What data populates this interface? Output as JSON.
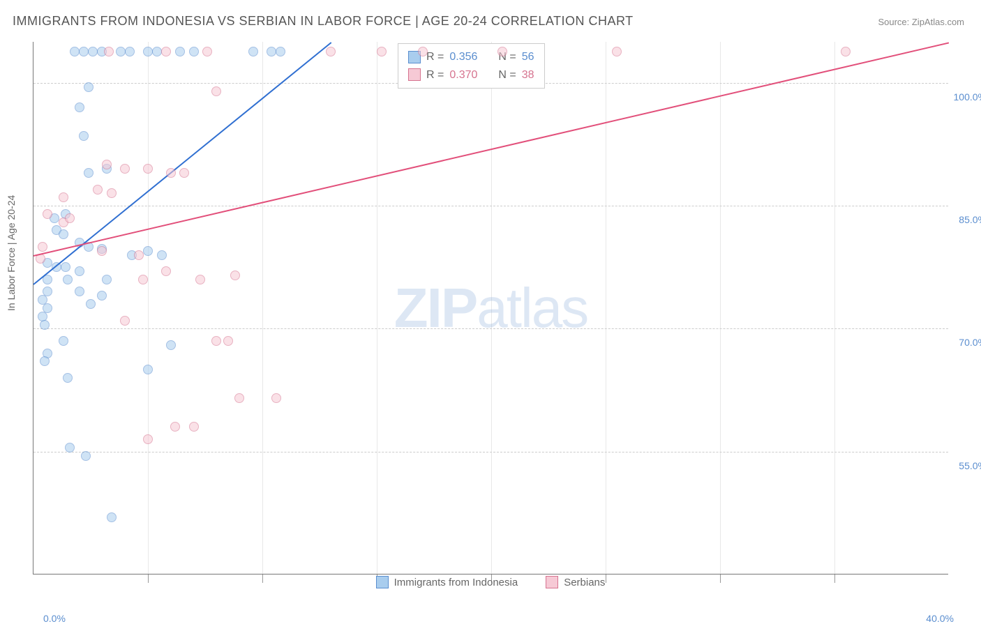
{
  "title": "IMMIGRANTS FROM INDONESIA VS SERBIAN IN LABOR FORCE | AGE 20-24 CORRELATION CHART",
  "source": "Source: ZipAtlas.com",
  "ylabel": "In Labor Force | Age 20-24",
  "watermark_a": "ZIP",
  "watermark_b": "atlas",
  "chart": {
    "type": "scatter",
    "xlim": [
      0,
      40
    ],
    "ylim": [
      40,
      105
    ],
    "grid_color": "#cccccc",
    "background_color": "#ffffff",
    "yticks": [
      {
        "value": 55,
        "label": "55.0%"
      },
      {
        "value": 70,
        "label": "70.0%"
      },
      {
        "value": 85,
        "label": "85.0%"
      },
      {
        "value": 100,
        "label": "100.0%"
      }
    ],
    "xgrid_values": [
      5,
      10,
      15,
      20,
      25,
      30,
      35
    ],
    "xtick_left_label": "0.0%",
    "xtick_right_label": "40.0%",
    "marker_radius": 7,
    "marker_opacity": 0.55,
    "series": [
      {
        "name": "Immigrants from Indonesia",
        "fill_color": "#a9cdee",
        "border_color": "#5b8ecf",
        "stroke_color": "#2f6fd1",
        "R": "0.356",
        "N": "56",
        "trend": {
          "x1": 0,
          "y1": 75.5,
          "x2": 13.0,
          "y2": 105.0
        },
        "points": [
          [
            1.8,
            103.8
          ],
          [
            2.2,
            103.8
          ],
          [
            2.6,
            103.8
          ],
          [
            3.0,
            103.8
          ],
          [
            3.8,
            103.8
          ],
          [
            4.2,
            103.8
          ],
          [
            5.0,
            103.8
          ],
          [
            5.4,
            103.8
          ],
          [
            6.4,
            103.8
          ],
          [
            7.0,
            103.8
          ],
          [
            9.6,
            103.8
          ],
          [
            10.4,
            103.8
          ],
          [
            10.8,
            103.8
          ],
          [
            2.4,
            99.5
          ],
          [
            2.0,
            97.0
          ],
          [
            2.2,
            93.5
          ],
          [
            3.2,
            89.5
          ],
          [
            2.4,
            89.0
          ],
          [
            0.9,
            83.5
          ],
          [
            1.4,
            84.0
          ],
          [
            1.0,
            82.0
          ],
          [
            1.3,
            81.5
          ],
          [
            2.0,
            80.5
          ],
          [
            2.4,
            80.0
          ],
          [
            3.0,
            79.7
          ],
          [
            4.3,
            79.0
          ],
          [
            5.0,
            79.5
          ],
          [
            5.6,
            79.0
          ],
          [
            0.6,
            78.0
          ],
          [
            1.0,
            77.5
          ],
          [
            1.4,
            77.5
          ],
          [
            2.0,
            77.0
          ],
          [
            0.6,
            76.0
          ],
          [
            1.5,
            76.0
          ],
          [
            3.2,
            76.0
          ],
          [
            0.6,
            74.5
          ],
          [
            0.4,
            73.5
          ],
          [
            0.6,
            72.5
          ],
          [
            0.4,
            71.5
          ],
          [
            0.5,
            70.5
          ],
          [
            2.0,
            74.5
          ],
          [
            2.5,
            73.0
          ],
          [
            3.0,
            74.0
          ],
          [
            1.3,
            68.5
          ],
          [
            6.0,
            68.0
          ],
          [
            0.6,
            67.0
          ],
          [
            0.5,
            66.0
          ],
          [
            1.5,
            64.0
          ],
          [
            5.0,
            65.0
          ],
          [
            1.6,
            55.5
          ],
          [
            2.3,
            54.5
          ],
          [
            3.4,
            47.0
          ]
        ]
      },
      {
        "name": "Serbians",
        "fill_color": "#f6c9d5",
        "border_color": "#d6738f",
        "stroke_color": "#e24f7a",
        "R": "0.370",
        "N": "38",
        "trend": {
          "x1": 0,
          "y1": 79.0,
          "x2": 40.0,
          "y2": 105.0
        },
        "points": [
          [
            3.3,
            103.8
          ],
          [
            5.8,
            103.8
          ],
          [
            7.6,
            103.8
          ],
          [
            13.0,
            103.8
          ],
          [
            15.2,
            103.8
          ],
          [
            17.0,
            103.8
          ],
          [
            20.5,
            103.8
          ],
          [
            25.5,
            103.8
          ],
          [
            35.5,
            103.8
          ],
          [
            8.0,
            99.0
          ],
          [
            3.2,
            90.0
          ],
          [
            4.0,
            89.5
          ],
          [
            5.0,
            89.5
          ],
          [
            6.0,
            89.0
          ],
          [
            6.6,
            89.0
          ],
          [
            1.3,
            86.0
          ],
          [
            2.8,
            87.0
          ],
          [
            3.4,
            86.5
          ],
          [
            0.6,
            84.0
          ],
          [
            1.3,
            83.0
          ],
          [
            1.6,
            83.5
          ],
          [
            0.4,
            80.0
          ],
          [
            0.3,
            78.5
          ],
          [
            3.0,
            79.5
          ],
          [
            4.6,
            79.0
          ],
          [
            5.8,
            77.0
          ],
          [
            4.8,
            76.0
          ],
          [
            7.3,
            76.0
          ],
          [
            8.8,
            76.5
          ],
          [
            4.0,
            71.0
          ],
          [
            8.0,
            68.5
          ],
          [
            8.5,
            68.5
          ],
          [
            9.0,
            61.5
          ],
          [
            10.6,
            61.5
          ],
          [
            6.2,
            58.0
          ],
          [
            7.0,
            58.0
          ],
          [
            5.0,
            56.5
          ]
        ]
      }
    ]
  }
}
